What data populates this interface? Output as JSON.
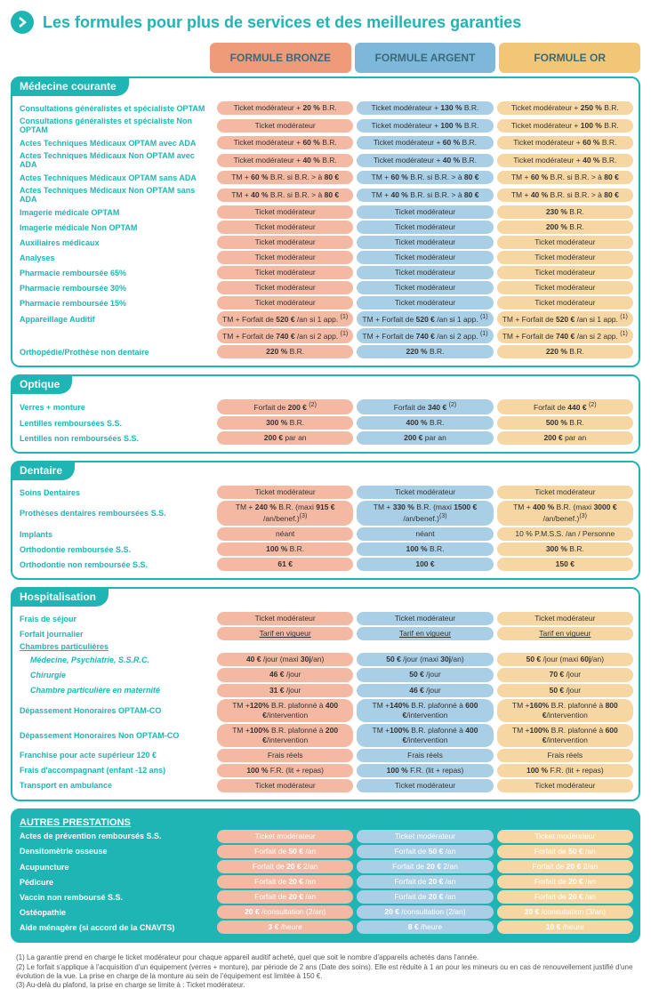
{
  "colors": {
    "teal": "#20b5b5",
    "bronze_bg": "#f3b9a3",
    "argent_bg": "#a9cfe6",
    "or_bg": "#f6d7a3",
    "bronze_header": "#ef9b7a",
    "argent_header": "#7db8db",
    "or_header": "#f2c677",
    "text_header": "#3a6a7a"
  },
  "title": "Les formules pour plus de services et des meilleures garanties",
  "plans": [
    "FORMULE BRONZE",
    "FORMULE ARGENT",
    "FORMULE OR"
  ],
  "sections": [
    {
      "name": "Médecine courante",
      "rows": [
        {
          "label": "Consultations généralistes et spécialiste OPTAM",
          "cells": [
            "Ticket modérateur + <b>20 %</b> B.R.",
            "Ticket modérateur + <b>130 %</b> B.R.",
            "Ticket modérateur + <b>250 %</b> B.R."
          ]
        },
        {
          "label": "Consultations généralistes et spécialiste Non OPTAM",
          "cells": [
            "Ticket modérateur",
            "Ticket modérateur + <b>100 %</b> B.R.",
            "Ticket modérateur + <b>100 %</b> B.R."
          ]
        },
        {
          "label": "Actes Techniques Médicaux OPTAM avec ADA",
          "cells": [
            "Ticket modérateur + <b>60 %</b> B.R.",
            "Ticket modérateur + <b>60 %</b> B.R.",
            "Ticket modérateur + <b>60 %</b> B.R."
          ]
        },
        {
          "label": "Actes Techniques Médicaux Non OPTAM avec ADA",
          "cells": [
            "Ticket modérateur + <b>40 %</b> B.R.",
            "Ticket modérateur + <b>40 %</b> B.R.",
            "Ticket modérateur + <b>40 %</b> B.R."
          ]
        },
        {
          "label": "Actes Techniques Médicaux OPTAM sans ADA",
          "cells": [
            "TM + <b>60 %</b> B.R. si B.R. > à <b>80 €</b>",
            "TM + <b>60 %</b> B.R. si B.R. > à <b>80 €</b>",
            "TM + <b>60 %</b> B.R. si B.R. > à <b>80 €</b>"
          ]
        },
        {
          "label": "Actes Techniques Médicaux Non OPTAM sans ADA",
          "cells": [
            "TM + <b>40 %</b> B.R. si B.R. > à <b>80 €</b>",
            "TM + <b>40 %</b> B.R. si B.R. > à <b>80 €</b>",
            "TM + <b>40 %</b> B.R. si B.R. > à <b>80 €</b>"
          ]
        },
        {
          "label": "Imagerie médicale OPTAM",
          "cells": [
            "Ticket modérateur",
            "Ticket modérateur",
            "<b>230 %</b> B.R."
          ]
        },
        {
          "label": "Imagerie médicale Non OPTAM",
          "cells": [
            "Ticket modérateur",
            "Ticket modérateur",
            "<b>200 %</b> B.R."
          ]
        },
        {
          "label": "Auxiliaires médicaux",
          "cells": [
            "Ticket modérateur",
            "Ticket modérateur",
            "Ticket modérateur"
          ]
        },
        {
          "label": "Analyses",
          "cells": [
            "Ticket modérateur",
            "Ticket modérateur",
            "Ticket modérateur"
          ]
        },
        {
          "label": "Pharmacie remboursée 65%",
          "cells": [
            "Ticket modérateur",
            "Ticket modérateur",
            "Ticket modérateur"
          ]
        },
        {
          "label": "Pharmacie remboursée 30%",
          "cells": [
            "Ticket modérateur",
            "Ticket modérateur",
            "Ticket modérateur"
          ]
        },
        {
          "label": "Pharmacie remboursée 15%",
          "cells": [
            "Ticket modérateur",
            "Ticket modérateur",
            "Ticket modérateur"
          ]
        },
        {
          "label": "Appareillage Auditif",
          "cells": [
            "TM + Forfait de <b>520 €</b> /an si 1 app. <sup>(1)</sup>",
            "TM + Forfait de <b>520 €</b> /an si 1 app. <sup>(1)</sup>",
            "TM + Forfait de <b>520 €</b> /an si 1 app. <sup>(1)</sup>"
          ]
        },
        {
          "label": "",
          "cells": [
            "TM + Forfait de <b>740 €</b> /an si 2 app. <sup>(1)</sup>",
            "TM + Forfait de <b>740 €</b> /an si 2 app. <sup>(1)</sup>",
            "TM + Forfait de <b>740 €</b> /an si 2 app. <sup>(1)</sup>"
          ]
        },
        {
          "label": "Orthopédie/Prothèse non dentaire",
          "cells": [
            "<b>220 %</b> B.R.",
            "<b>220 %</b> B.R.",
            "<b>220 %</b> B.R."
          ]
        }
      ]
    },
    {
      "name": "Optique",
      "rows": [
        {
          "label": "Verres + monture",
          "cells": [
            "Forfait de <b>200 €</b> <sup>(2)</sup>",
            "Forfait de <b>340 €</b> <sup>(2)</sup>",
            "Forfait de <b>440 €</b> <sup>(2)</sup>"
          ]
        },
        {
          "label": "Lentilles remboursées S.S.",
          "cells": [
            "<b>300 %</b> B.R.",
            "<b>400 %</b> B.R.",
            "<b>500 %</b> B.R."
          ]
        },
        {
          "label": "Lentilles non remboursées S.S.",
          "cells": [
            "<b>200 €</b> par an",
            "<b>200 €</b> par an",
            "<b>200 €</b> par an"
          ]
        }
      ]
    },
    {
      "name": "Dentaire",
      "rows": [
        {
          "label": "Soins Dentaires",
          "cells": [
            "Ticket modérateur",
            "Ticket modérateur",
            "Ticket modérateur"
          ]
        },
        {
          "label": "Prothèses dentaires remboursées S.S.",
          "cells": [
            "TM + <b>240 %</b> B.R. (maxi <b>915 €</b> /an/benef.)<sup>(3)</sup>",
            "TM + <b>330 %</b> B.R. (maxi <b>1500 €</b> /an/benef.)<sup>(3)</sup>",
            "TM + <b>400 %</b> B.R. (maxi <b>3000 €</b> /an/benef.)<sup>(3)</sup>"
          ]
        },
        {
          "label": "Implants",
          "cells": [
            "néant",
            "néant",
            "10 % P.M.S.S. /an / Personne"
          ]
        },
        {
          "label": "Orthodontie remboursée S.S.",
          "cells": [
            "<b>100 %</b> B.R.",
            "<b>100 %</b> B.R.",
            "<b>300 %</b> B.R."
          ]
        },
        {
          "label": "Orthodontie non remboursée S.S.",
          "cells": [
            "<b>61 €</b>",
            "<b>100 €</b>",
            "<b>150 €</b>"
          ]
        }
      ]
    },
    {
      "name": "Hospitalisation",
      "rows": [
        {
          "label": "Frais de séjour",
          "cells": [
            "Ticket modérateur",
            "Ticket modérateur",
            "Ticket modérateur"
          ]
        },
        {
          "label": "Forfait journalier",
          "cells": [
            "<span class='u'>Tarif en vigueur</span>",
            "<span class='u'>Tarif en vigueur</span>",
            "<span class='u'>Tarif en vigueur</span>"
          ]
        },
        {
          "label": "Chambres particulières",
          "underline": true,
          "cells": [
            "",
            "",
            ""
          ],
          "empty": true
        },
        {
          "label": "Médecine, Psychiatrie, S.S.R.C.",
          "sub": true,
          "cells": [
            "<b>40 €</b> /jour (maxi <b>30j</b>/an)",
            "<b>50 €</b> /jour (maxi <b>30j</b>/an)",
            "<b>50 €</b> /jour (maxi <b>60j</b>/an)"
          ]
        },
        {
          "label": "Chirurgie",
          "sub": true,
          "cells": [
            "<b>46 €</b> /jour",
            "<b>50 €</b> /jour",
            "<b>70 €</b> /jour"
          ]
        },
        {
          "label": "Chambre particulière en maternité",
          "sub": true,
          "cells": [
            "<b>31 €</b> /jour",
            "<b>46 €</b> /jour",
            "<b>50 €</b> /jour"
          ]
        },
        {
          "label": "Dépassement Honoraires OPTAM-CO",
          "cells": [
            "TM +<b>120%</b> B.R. plafonné à <b>400 €</b>/intervention",
            "TM +<b>140%</b> B.R. plafonné à <b>600 €</b>/intervention",
            "TM +<b>160%</b> B.R. plafonné à <b>800 €</b>/intervention"
          ]
        },
        {
          "label": "Dépassement Honoraires Non OPTAM-CO",
          "cells": [
            "TM +<b>100%</b> B.R. plafonné à <b>200 €</b>/intervention",
            "TM +<b>100%</b> B.R. plafonné à <b>400 €</b>/intervention",
            "TM +<b>100%</b> B.R. plafonné à <b>600 €</b>/intervention"
          ]
        },
        {
          "label": "Franchise pour acte supérieur 120 €",
          "cells": [
            "Frais réels",
            "Frais réels",
            "Frais réels"
          ]
        },
        {
          "label": "Frais d'accompagnant (enfant -12 ans)",
          "cells": [
            "<b>100 %</b> F.R. (lit + repas)",
            "<b>100 %</b> F.R. (lit + repas)",
            "<b>100 %</b> F.R. (lit + repas)"
          ]
        },
        {
          "label": "Transport en ambulance",
          "cells": [
            "Ticket modérateur",
            "Ticket modérateur",
            "Ticket modérateur"
          ]
        }
      ]
    },
    {
      "name": "AUTRES PRESTATIONS",
      "filled": true,
      "rows": [
        {
          "label": "Actes de prévention remboursés S.S.",
          "cells": [
            "Ticket modérateur",
            "Ticket modérateur",
            "Ticket modérateur"
          ]
        },
        {
          "label": "Densitomètrie osseuse",
          "cells": [
            "Forfait de <b>50 €</b> /an",
            "Forfait de <b>50 €</b> /an",
            "Forfait de <b>50 €</b> /an"
          ]
        },
        {
          "label": "Acupuncture",
          "cells": [
            "Forfait de <b>20 €</b> 2/an",
            "Forfait de <b>20 €</b> 2/an",
            "Forfait de <b>20 €</b> 2/an"
          ]
        },
        {
          "label": "Pédicure",
          "cells": [
            "Forfait de <b>20 €</b> /an",
            "Forfait de <b>20 €</b> /an",
            "Forfait de <b>20 €</b> /an"
          ]
        },
        {
          "label": "Vaccin non remboursé S.S.",
          "cells": [
            "Forfait de <b>20 €</b> /an",
            "Forfait de <b>20 €</b> /an",
            "Forfait de <b>20 €</b> /an"
          ]
        },
        {
          "label": "Ostéopathie",
          "cells": [
            "<b>20 €</b> /consultation (2/an)",
            "<b>20 €</b> /consultation (2/an)",
            "<b>20 €</b> /consultation (3/an)"
          ]
        },
        {
          "label": "Aide ménagère (si accord de la CNAVTS)",
          "cells": [
            "<b>3 €</b> /heure",
            "<b>8 €</b> /heure",
            "<b>10 €</b> /heure"
          ]
        }
      ]
    }
  ],
  "footnotes": [
    "(1) La garantie prend en charge le ticket modérateur pour chaque appareil auditif acheté, quel que soit le nombre d'appareils achetés dans l'année.",
    "(2) Le forfait s'applique à l'acquisition d'un équipement (verres + monture), par période de 2 ans (Date des soins). Elle est réduite à 1 an pour les mineurs ou en cas de renouvellement justifié d'une évolution de la vue. La prise en charge de la monture au sein de l'équipement est limitée à 150 €.",
    "(3) Au-delà du plafond, la prise en charge se limite à : Ticket modérateur."
  ]
}
